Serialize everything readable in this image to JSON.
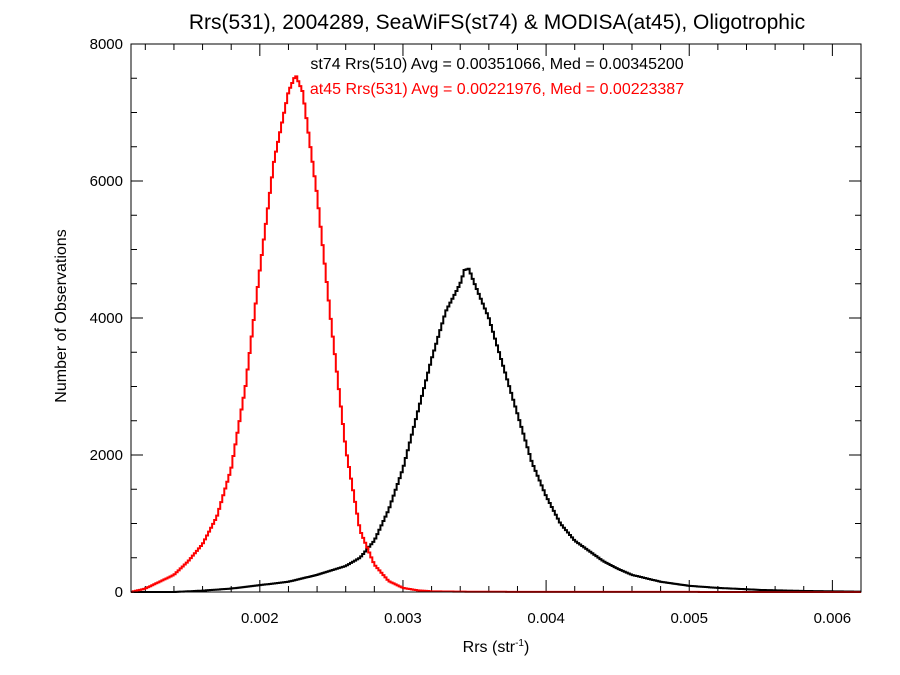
{
  "chart_data": {
    "type": "line",
    "title": "Rrs(531), 2004289, SeaWiFS(st74) & MODISA(at45), Oligotrophic",
    "xlabel_base": "Rrs (str",
    "xlabel_sup": "-1",
    "xlabel_close": ")",
    "ylabel": "Number of Observations",
    "xlim": [
      0.0011,
      0.0062
    ],
    "ylim": [
      0,
      8000
    ],
    "x_ticks": [
      0.002,
      0.003,
      0.004,
      0.005,
      0.006
    ],
    "x_tick_labels": [
      "0.002",
      "0.003",
      "0.004",
      "0.005",
      "0.006"
    ],
    "y_ticks": [
      0,
      2000,
      4000,
      6000,
      8000
    ],
    "y_tick_labels": [
      "0",
      "2000",
      "4000",
      "6000",
      "8000"
    ],
    "annotations": [
      {
        "text": "st74 Rrs(510) Avg = 0.00351066, Med = 0.00345200",
        "color": "#000000"
      },
      {
        "text": "at45 Rrs(531) Avg = 0.00221976, Med = 0.00223387",
        "color": "#ff0000"
      }
    ],
    "series": [
      {
        "color": "#000000",
        "step": true,
        "x": [
          0.0011,
          0.0014,
          0.0016,
          0.0018,
          0.002,
          0.0022,
          0.0024,
          0.0026,
          0.0027,
          0.0028,
          0.0029,
          0.003,
          0.0031,
          0.0032,
          0.0033,
          0.0034,
          0.00343,
          0.00346,
          0.0035,
          0.0036,
          0.0037,
          0.0038,
          0.0039,
          0.004,
          0.0041,
          0.0042,
          0.0043,
          0.0044,
          0.0045,
          0.0046,
          0.0048,
          0.005,
          0.0052,
          0.0055,
          0.0058,
          0.0062
        ],
        "y": [
          0,
          0,
          20,
          50,
          100,
          150,
          250,
          380,
          500,
          750,
          1200,
          1800,
          2600,
          3400,
          4100,
          4500,
          4700,
          4720,
          4500,
          4000,
          3300,
          2600,
          1900,
          1400,
          1000,
          750,
          600,
          450,
          340,
          250,
          150,
          90,
          60,
          30,
          15,
          5
        ]
      },
      {
        "color": "#ff0000",
        "step": true,
        "x": [
          0.0011,
          0.0012,
          0.0013,
          0.0014,
          0.0015,
          0.0016,
          0.0017,
          0.0018,
          0.0019,
          0.002,
          0.0021,
          0.0022,
          0.00225,
          0.0023,
          0.0024,
          0.0025,
          0.0026,
          0.0027,
          0.0028,
          0.0029,
          0.003,
          0.0031,
          0.0032,
          0.0034,
          0.0036,
          0.004,
          0.0045,
          0.005,
          0.0062
        ],
        "y": [
          0,
          50,
          150,
          250,
          450,
          700,
          1100,
          1800,
          3000,
          4700,
          6300,
          7300,
          7550,
          7300,
          5800,
          3900,
          2100,
          900,
          400,
          160,
          60,
          25,
          10,
          5,
          3,
          2,
          1,
          1,
          0
        ]
      }
    ]
  }
}
